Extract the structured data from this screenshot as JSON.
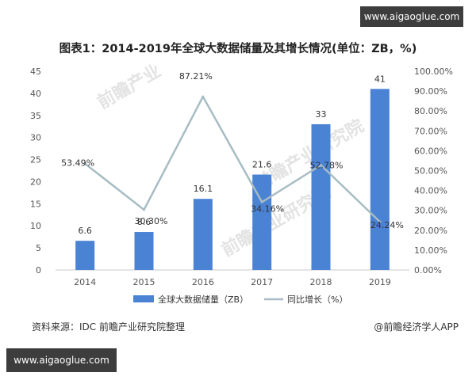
{
  "watermark": {
    "top": "www.aigaoglue.com",
    "bottom": "www.aigaoglue.com"
  },
  "background_logo": [
    "前瞻产业",
    "前瞻产业研究院",
    "前瞻产业研究院"
  ],
  "chart_data": {
    "type": "bar",
    "title": "图表1：2014-2019年全球大数据储量及其增长情况(单位：ZB，%)",
    "categories": [
      "2014",
      "2015",
      "2016",
      "2017",
      "2018",
      "2019"
    ],
    "series": [
      {
        "name": "全球大数据储量（ZB）",
        "type": "bar",
        "axis": "left",
        "values": [
          6.6,
          8.6,
          16.1,
          21.6,
          33,
          41
        ],
        "labels": [
          "6.6",
          "8.6",
          "16.1",
          "21.6",
          "33",
          "41"
        ],
        "color": "#4a82d4"
      },
      {
        "name": "同比增长（%）",
        "type": "line",
        "axis": "right",
        "values": [
          53.49,
          30.3,
          87.21,
          34.16,
          52.78,
          24.24
        ],
        "labels": [
          "53.49%",
          "30.30%",
          "87.21%",
          "34.16%",
          "52.78%",
          "24.24%"
        ],
        "color": "#a7bcc3"
      }
    ],
    "left_axis": {
      "ylim": [
        0,
        45
      ],
      "ticks": [
        "0",
        "5",
        "10",
        "15",
        "20",
        "25",
        "30",
        "35",
        "40",
        "45"
      ]
    },
    "right_axis": {
      "ylim": [
        0,
        100
      ],
      "ticks": [
        "0.00%",
        "10.00%",
        "20.00%",
        "30.00%",
        "40.00%",
        "50.00%",
        "60.00%",
        "70.00%",
        "80.00%",
        "90.00%",
        "100.00%"
      ]
    },
    "grid": false,
    "legend_position": "bottom"
  },
  "footer": {
    "source": "资料来源：IDC 前瞻产业研究院整理",
    "credit": "@前瞻经济学人APP"
  }
}
